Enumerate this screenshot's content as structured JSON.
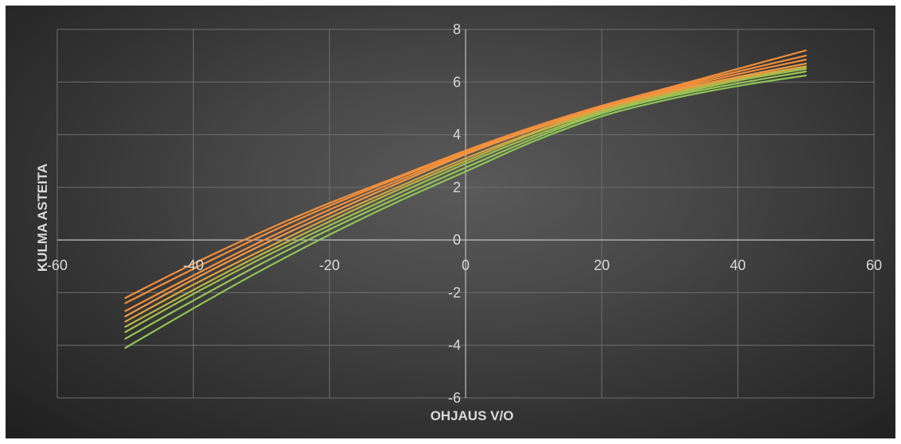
{
  "chart_data": {
    "type": "line",
    "title": "",
    "xlabel": "OHJAUS V/O",
    "ylabel": "KULMA ASTEITA",
    "xlim": [
      -60,
      60
    ],
    "ylim": [
      -6,
      8
    ],
    "x_ticks": [
      -60,
      -40,
      -20,
      0,
      20,
      40,
      60
    ],
    "y_ticks": [
      -6,
      -4,
      -2,
      0,
      2,
      4,
      6,
      8
    ],
    "x_tick_labels": [
      "-60",
      "-40",
      "-20",
      "0",
      "20",
      "40",
      "60"
    ],
    "y_tick_labels": [
      "-6",
      "-4",
      "-2",
      "0",
      "2",
      "4",
      "6",
      "8"
    ],
    "grid": true,
    "legend": "none",
    "x": [
      -50,
      -40,
      -30,
      -20,
      -10,
      0,
      10,
      20,
      30,
      40,
      50
    ],
    "series": [
      {
        "color": "#f28e3b",
        "values": [
          -2.2,
          -0.9,
          0.3,
          1.4,
          2.4,
          3.4,
          4.3,
          5.1,
          5.8,
          6.5,
          7.2
        ]
      },
      {
        "color": "#f28e3b",
        "values": [
          -2.4,
          -1.1,
          0.15,
          1.3,
          2.35,
          3.35,
          4.25,
          5.05,
          5.75,
          6.4,
          7.0
        ]
      },
      {
        "color": "#f28e3b",
        "values": [
          -2.7,
          -1.35,
          -0.05,
          1.15,
          2.25,
          3.3,
          4.2,
          5.0,
          5.7,
          6.3,
          6.85
        ]
      },
      {
        "color": "#f09844",
        "values": [
          -2.9,
          -1.5,
          -0.2,
          1.0,
          2.15,
          3.25,
          4.2,
          5.0,
          5.65,
          6.2,
          6.7
        ]
      },
      {
        "color": "#d9a33f",
        "values": [
          -3.1,
          -1.7,
          -0.4,
          0.85,
          2.0,
          3.1,
          4.1,
          4.95,
          5.6,
          6.15,
          6.6
        ]
      },
      {
        "color": "#b9b347",
        "values": [
          -3.3,
          -1.9,
          -0.55,
          0.7,
          1.9,
          3.0,
          4.05,
          4.9,
          5.55,
          6.1,
          6.55
        ]
      },
      {
        "color": "#9fbf4e",
        "values": [
          -3.5,
          -2.05,
          -0.7,
          0.55,
          1.75,
          2.9,
          3.95,
          4.85,
          5.5,
          6.05,
          6.5
        ]
      },
      {
        "color": "#96c457",
        "values": [
          -3.75,
          -2.3,
          -0.9,
          0.4,
          1.6,
          2.75,
          3.85,
          4.8,
          5.45,
          5.95,
          6.4
        ]
      },
      {
        "color": "#8fc454",
        "values": [
          -4.1,
          -2.6,
          -1.15,
          0.2,
          1.45,
          2.6,
          3.75,
          4.7,
          5.35,
          5.85,
          6.25
        ]
      }
    ]
  }
}
